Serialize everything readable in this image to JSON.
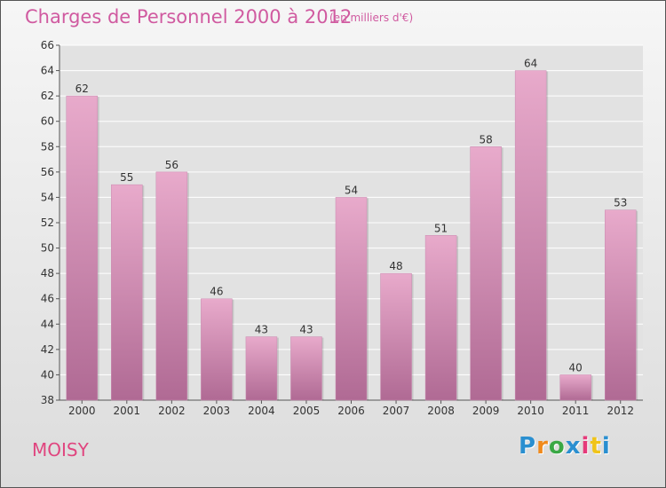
{
  "title": "Charges de Personnel 2000 à 2012",
  "subtitle": "(en milliers d'€)",
  "place": "MOISY",
  "logo": {
    "letters": [
      "P",
      "r",
      "o",
      "x",
      "i",
      "t",
      "i"
    ],
    "colors": [
      "#2a8fd0",
      "#f08a1c",
      "#3aa845",
      "#2a8fd0",
      "#e53a7a",
      "#f0c419",
      "#2a8fd0"
    ]
  },
  "colors": {
    "bar_top": "#e8aacb",
    "bar_bottom": "#b06a94",
    "title": "#d05aa0",
    "place": "#e0457f"
  },
  "chart_data": {
    "type": "bar",
    "categories": [
      "2000",
      "2001",
      "2002",
      "2003",
      "2004",
      "2005",
      "2006",
      "2007",
      "2008",
      "2009",
      "2010",
      "2011",
      "2012"
    ],
    "values": [
      62,
      55,
      56,
      46,
      43,
      43,
      54,
      48,
      51,
      58,
      64,
      40,
      53
    ],
    "ylim": [
      38,
      66
    ],
    "yticks": [
      38,
      40,
      42,
      44,
      46,
      48,
      50,
      52,
      54,
      56,
      58,
      60,
      62,
      64,
      66
    ],
    "grid": true,
    "data_labels": true
  }
}
